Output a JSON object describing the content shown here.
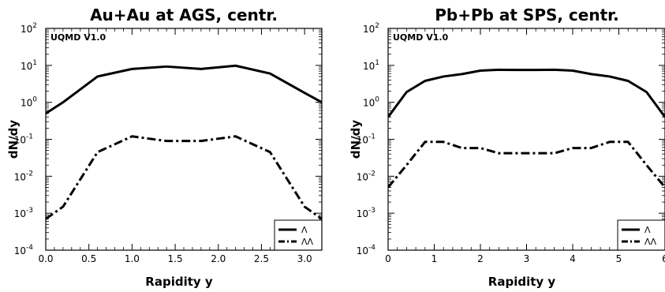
{
  "chart_data": [
    {
      "type": "line",
      "title": "Au+Au at AGS, centr.",
      "annotation": "UQMD V1.0",
      "xlabel": "Rapidity y",
      "ylabel": "dN/dy",
      "yscale": "log",
      "xlim": [
        0,
        3.2
      ],
      "ylim": [
        0.0001,
        100
      ],
      "xticks": [
        0,
        0.5,
        1,
        1.5,
        2,
        2.5,
        3
      ],
      "xtick_labels": [
        "0.0",
        "0.5",
        "1.0",
        "1.5",
        "2.0",
        "2.5",
        "3.0"
      ],
      "yticks": [
        0.0001,
        0.001,
        0.01,
        0.1,
        1,
        10,
        100
      ],
      "ytick_labels": [
        {
          "base": "10",
          "exp": "-4"
        },
        {
          "base": "10",
          "exp": "-3"
        },
        {
          "base": "10",
          "exp": "-2"
        },
        {
          "base": "10",
          "exp": "-1"
        },
        {
          "base": "10",
          "exp": "0"
        },
        {
          "base": "10",
          "exp": "1"
        },
        {
          "base": "10",
          "exp": "2"
        }
      ],
      "grid": false,
      "legend_position": "bottom-right",
      "series": [
        {
          "name": "Λ",
          "style": "solid",
          "x": [
            0,
            0.2,
            0.6,
            1.0,
            1.4,
            1.8,
            2.2,
            2.6,
            3.0,
            3.2
          ],
          "y": [
            0.5,
            1.0,
            5.0,
            8.0,
            9.3,
            8.0,
            9.8,
            6.0,
            1.8,
            1.0
          ]
        },
        {
          "name": "ΛΛ",
          "style": "dashdot",
          "x": [
            0,
            0.2,
            0.6,
            1.0,
            1.4,
            1.8,
            2.2,
            2.6,
            3.0,
            3.2
          ],
          "y": [
            0.0007,
            0.0015,
            0.045,
            0.12,
            0.09,
            0.09,
            0.12,
            0.045,
            0.0015,
            0.0007
          ]
        }
      ]
    },
    {
      "type": "line",
      "title": "Pb+Pb at SPS, centr.",
      "annotation": "UQMD V1.0",
      "xlabel": "Rapidity y",
      "ylabel": "dN/dy",
      "yscale": "log",
      "xlim": [
        0,
        6
      ],
      "ylim": [
        0.0001,
        100
      ],
      "xticks": [
        0,
        1,
        2,
        3,
        4,
        5,
        6
      ],
      "xtick_labels": [
        "0",
        "1",
        "2",
        "3",
        "4",
        "5",
        "6"
      ],
      "yticks": [
        0.0001,
        0.001,
        0.01,
        0.1,
        1,
        10,
        100
      ],
      "ytick_labels": [
        {
          "base": "10",
          "exp": "-4"
        },
        {
          "base": "10",
          "exp": "-3"
        },
        {
          "base": "10",
          "exp": "-2"
        },
        {
          "base": "10",
          "exp": "-1"
        },
        {
          "base": "10",
          "exp": "0"
        },
        {
          "base": "10",
          "exp": "1"
        },
        {
          "base": "10",
          "exp": "2"
        }
      ],
      "grid": false,
      "legend_position": "bottom-right",
      "series": [
        {
          "name": "Λ",
          "style": "solid",
          "x": [
            0,
            0.4,
            0.8,
            1.2,
            1.6,
            2.0,
            2.4,
            2.8,
            3.2,
            3.6,
            4.0,
            4.4,
            4.8,
            5.2,
            5.6,
            6.0
          ],
          "y": [
            0.4,
            1.9,
            3.8,
            5.0,
            5.8,
            7.2,
            7.6,
            7.5,
            7.5,
            7.6,
            7.2,
            5.8,
            5.0,
            3.8,
            1.9,
            0.4
          ]
        },
        {
          "name": "ΛΛ",
          "style": "dashdot",
          "x": [
            0,
            0.4,
            0.8,
            1.2,
            1.6,
            2.0,
            2.4,
            2.8,
            3.2,
            3.6,
            4.0,
            4.4,
            4.8,
            5.2,
            5.6,
            6.0
          ],
          "y": [
            0.005,
            0.02,
            0.085,
            0.085,
            0.058,
            0.058,
            0.042,
            0.042,
            0.042,
            0.042,
            0.058,
            0.058,
            0.085,
            0.085,
            0.02,
            0.005
          ]
        }
      ]
    }
  ]
}
